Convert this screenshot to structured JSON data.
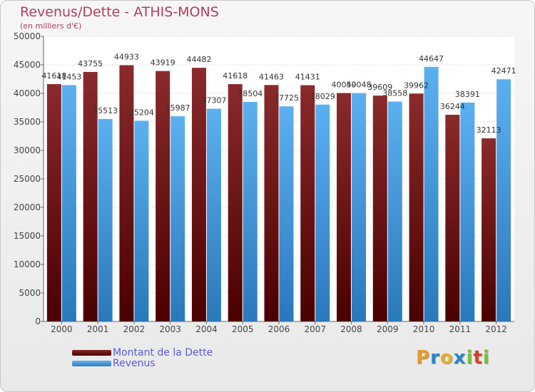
{
  "title": "Revenus/Dette - ATHIS-MONS",
  "subtitle": "(en milliers d'€)",
  "colors": {
    "dette": "#7a1a1c",
    "revenus": "#4a9fe0",
    "title": "#b0405a",
    "legend_text": "#5a5ad8"
  },
  "logo": {
    "text": "Proxiti",
    "letters": [
      "P",
      "r",
      "o",
      "x",
      "i",
      "t",
      "i"
    ],
    "colors": [
      "#e89a2a",
      "#2b86c8",
      "#e8b02a",
      "#2b86c8",
      "#7cbf3a",
      "#d8402a",
      "#7cbf3a"
    ]
  },
  "legend": [
    {
      "label": "Montant de la Dette",
      "color": "#7a1a1c"
    },
    {
      "label": "Revenus",
      "color": "#4a9fe0"
    }
  ],
  "chart_data": {
    "type": "bar",
    "title": "Revenus/Dette - ATHIS-MONS",
    "subtitle": "(en milliers d'€)",
    "categories": [
      "2000",
      "2001",
      "2002",
      "2003",
      "2004",
      "2005",
      "2006",
      "2007",
      "2008",
      "2009",
      "2010",
      "2011",
      "2012"
    ],
    "series": [
      {
        "name": "Montant de la Dette",
        "values": [
          41618,
          43755,
          44933,
          43919,
          44482,
          41618,
          41463,
          41431,
          40059,
          39609,
          39962,
          36244,
          32113
        ]
      },
      {
        "name": "Revenus",
        "values": [
          41453,
          35513,
          35204,
          35987,
          37307,
          38504,
          37725,
          38029,
          40048,
          38558,
          44647,
          38391,
          42471
        ]
      }
    ],
    "ylim": [
      0,
      50000
    ],
    "yticks": [
      0,
      5000,
      10000,
      15000,
      20000,
      25000,
      30000,
      35000,
      40000,
      45000,
      50000
    ],
    "grid": true,
    "legend_position": "bottom-left"
  }
}
